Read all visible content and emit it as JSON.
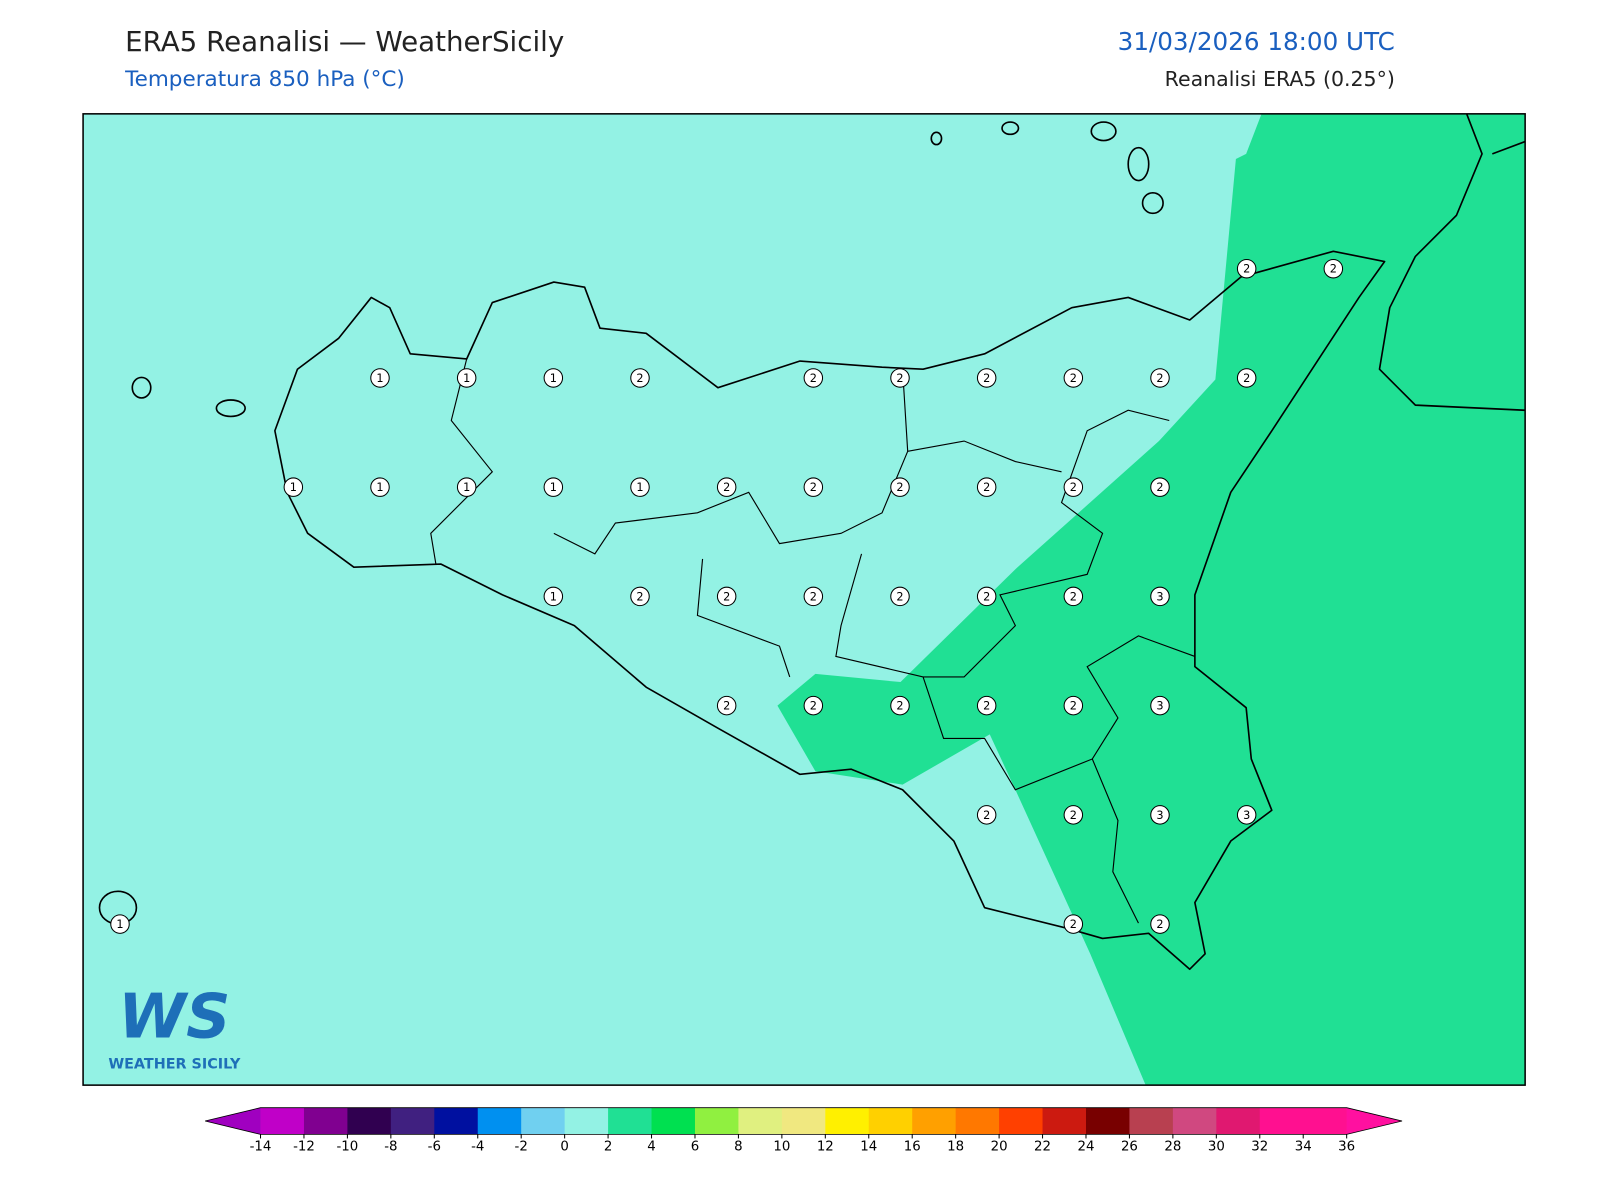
{
  "header": {
    "title": "ERA5 Reanalisi — WeatherSicily",
    "subtitle": "Temperatura 850 hPa (°C)",
    "datetime": "31/03/2026 18:00 UTC",
    "source": "Reanalisi ERA5 (0.25°)"
  },
  "map": {
    "stations": [
      [
        null,
        null,
        null,
        null,
        null,
        null,
        null,
        null,
        null,
        null,
        null,
        null,
        null,
        2,
        2
      ],
      [
        null,
        null,
        null,
        1,
        1,
        1,
        2,
        null,
        2,
        2,
        2,
        2,
        2,
        2,
        null
      ],
      [
        null,
        null,
        1,
        1,
        1,
        1,
        1,
        2,
        2,
        2,
        2,
        2,
        2,
        null,
        null
      ],
      [
        null,
        null,
        null,
        null,
        null,
        1,
        2,
        2,
        2,
        2,
        2,
        2,
        3,
        null,
        null
      ],
      [
        null,
        null,
        null,
        null,
        null,
        null,
        null,
        2,
        2,
        2,
        2,
        2,
        3,
        null,
        null
      ],
      [
        null,
        null,
        null,
        null,
        null,
        null,
        null,
        null,
        null,
        null,
        2,
        2,
        3,
        3,
        null
      ],
      [
        1,
        null,
        null,
        null,
        null,
        null,
        null,
        null,
        null,
        null,
        null,
        2,
        2,
        null,
        null
      ]
    ]
  },
  "colorbar": {
    "ticks": [
      -14,
      -12,
      -10,
      -8,
      -6,
      -4,
      -2,
      0,
      2,
      4,
      6,
      8,
      10,
      12,
      14,
      16,
      18,
      20,
      22,
      24,
      26,
      28,
      30,
      32,
      34,
      36
    ],
    "colors": [
      "#a000c0",
      "#c000c8",
      "#800090",
      "#300050",
      "#402080",
      "#0010a0",
      "#0090f0",
      "#70d0f0",
      "#93f2e4",
      "#20e094",
      "#00e050",
      "#90f040",
      "#e0f080",
      "#f0e880",
      "#fff000",
      "#ffd000",
      "#ffa000",
      "#ff7800",
      "#ff4000",
      "#cc1a10",
      "#780000",
      "#b84050",
      "#d04880",
      "#e01870",
      "#ff1090",
      "#ff1090",
      "#ff10a0"
    ]
  },
  "logo": {
    "mark": "WS",
    "text": "WEATHER SICILY"
  }
}
